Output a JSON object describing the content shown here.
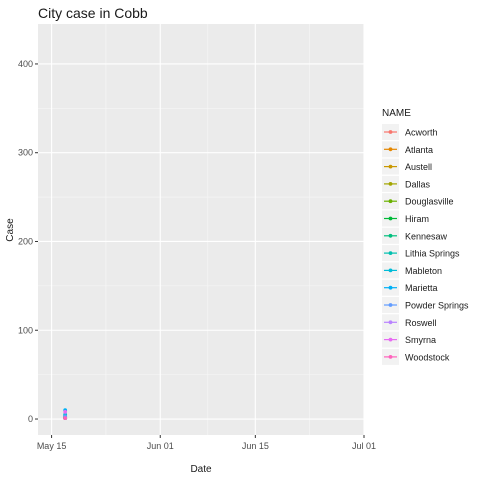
{
  "chart_data": {
    "type": "line",
    "title": "City case in Cobb",
    "xlabel": "Date",
    "ylabel": "Case",
    "xlim": [
      "2020-05-14",
      "2020-07-01"
    ],
    "ylim": [
      -18,
      445
    ],
    "x_ticks": [
      {
        "date": "2020-05-16",
        "label": "May 15"
      },
      {
        "date": "2020-06-01",
        "label": "Jun 01"
      },
      {
        "date": "2020-06-15",
        "label": "Jun 15"
      },
      {
        "date": "2020-07-01",
        "label": "Jul 01"
      }
    ],
    "y_ticks": [
      0,
      100,
      200,
      300,
      400
    ],
    "grid": true,
    "legend_title": "NAME",
    "legend_position": "right",
    "series": [
      {
        "name": "Acworth",
        "color": "#F8766D",
        "points": [
          {
            "x": "2020-05-18",
            "y": 1
          }
        ]
      },
      {
        "name": "Atlanta",
        "color": "#E58700",
        "points": [
          {
            "x": "2020-05-18",
            "y": 2
          }
        ]
      },
      {
        "name": "Austell",
        "color": "#C99800",
        "points": [
          {
            "x": "2020-05-18",
            "y": 1
          }
        ]
      },
      {
        "name": "Dallas",
        "color": "#A3A500",
        "points": [
          {
            "x": "2020-05-18",
            "y": 2
          }
        ]
      },
      {
        "name": "Douglasville",
        "color": "#6BB100",
        "points": [
          {
            "x": "2020-05-18",
            "y": 1
          }
        ]
      },
      {
        "name": "Hiram",
        "color": "#00BA38",
        "points": [
          {
            "x": "2020-05-18",
            "y": 1
          }
        ]
      },
      {
        "name": "Kennesaw",
        "color": "#00BF7D",
        "points": [
          {
            "x": "2020-05-18",
            "y": 4
          }
        ]
      },
      {
        "name": "Lithia Springs",
        "color": "#00C0AF",
        "points": [
          {
            "x": "2020-05-18",
            "y": 3
          }
        ]
      },
      {
        "name": "Mableton",
        "color": "#00BCD8",
        "points": [
          {
            "x": "2020-05-18",
            "y": 5
          }
        ]
      },
      {
        "name": "Marietta",
        "color": "#00B0F6",
        "points": [
          {
            "x": "2020-05-18",
            "y": 10
          }
        ]
      },
      {
        "name": "Powder Springs",
        "color": "#619CFF",
        "points": [
          {
            "x": "2020-05-18",
            "y": 3
          }
        ]
      },
      {
        "name": "Roswell",
        "color": "#B983FF",
        "points": [
          {
            "x": "2020-05-18",
            "y": 1
          }
        ]
      },
      {
        "name": "Smyrna",
        "color": "#E76BF3",
        "points": [
          {
            "x": "2020-05-18",
            "y": 8
          }
        ]
      },
      {
        "name": "Woodstock",
        "color": "#FF62BC",
        "points": [
          {
            "x": "2020-05-18",
            "y": 1
          }
        ]
      }
    ]
  }
}
